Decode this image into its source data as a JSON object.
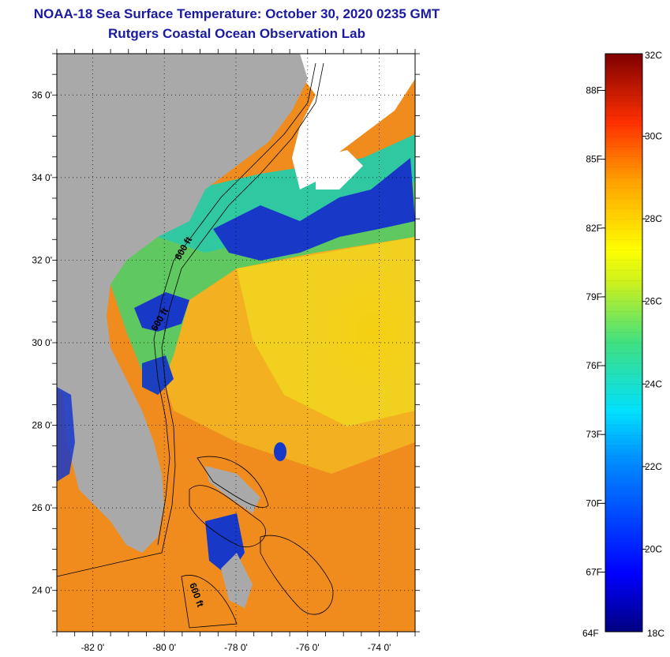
{
  "title": {
    "line1": "NOAA-18 Sea Surface Temperature:  October 30, 2020 0235 GMT",
    "line2": "Rutgers Coastal Ocean Observation Lab"
  },
  "map": {
    "lat_labels": [
      "36 0'",
      "34 0'",
      "32 0'",
      "30 0'",
      "28 0'",
      "26 0'",
      "24 0'"
    ],
    "lat_values": [
      36,
      34,
      32,
      30,
      28,
      26,
      24
    ],
    "lon_labels": [
      "-82 0'",
      "-80 0'",
      "-78 0'",
      "-76 0'",
      "-74 0'"
    ],
    "lon_values": [
      -82,
      -80,
      -78,
      -76,
      -74
    ],
    "lon_range": [
      -83,
      -73
    ],
    "lat_range": [
      23,
      37
    ],
    "contour_labels": [
      "600 ft",
      "600 ft",
      "600 ft"
    ],
    "colors": {
      "land": "#a9a9a9",
      "warm": "#f08c1e",
      "mild": "#f5d010",
      "cool": "#30d0a0",
      "cold": "#1030c0",
      "cloud": "#ffffff"
    }
  },
  "colorbar": {
    "top_label": "32C",
    "bottom_left": "64F",
    "bottom_right": "18C",
    "f_labels": [
      "88F",
      "85F",
      "82F",
      "79F",
      "76F",
      "73F",
      "70F",
      "67F"
    ],
    "f_values": [
      88,
      85,
      82,
      79,
      76,
      73,
      70,
      67
    ],
    "c_labels": [
      "30C",
      "28C",
      "26C",
      "24C",
      "22C",
      "20C"
    ],
    "c_values": [
      30,
      28,
      26,
      24,
      22,
      20
    ],
    "range_c": [
      18,
      32
    ]
  }
}
